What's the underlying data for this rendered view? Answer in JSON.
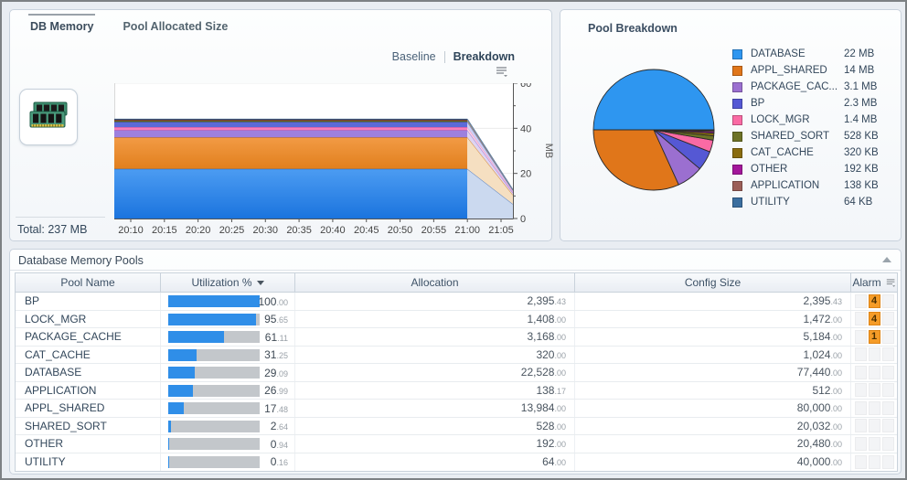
{
  "memory_panel": {
    "tabs": [
      {
        "label": "DB Memory",
        "selected": true
      },
      {
        "label": "Pool Allocated Size",
        "selected": false
      }
    ],
    "views": [
      {
        "label": "Baseline",
        "selected": false
      },
      {
        "label": "Breakdown",
        "selected": true
      }
    ],
    "total_label": "Total: 237 MB",
    "chart_data": {
      "type": "area",
      "x_ticks": [
        "20:10",
        "20:15",
        "20:20",
        "20:25",
        "20:30",
        "20:35",
        "20:40",
        "20:45",
        "20:50",
        "20:55",
        "21:00",
        "21:05"
      ],
      "ylabel": "MB",
      "ylim": [
        0,
        60
      ],
      "y_major_ticks": [
        0,
        20,
        40,
        60
      ],
      "y_minor_ticks": [
        10,
        30,
        50
      ],
      "forecast_start_tick": "21:00",
      "forecast_end_factor": 0.29,
      "series": [
        {
          "name": "DATABASE",
          "mb": 22,
          "fill": "#1B74DE",
          "fill2": "#4C9CF2",
          "edge": "#1462C8",
          "ffill": "#CBD9EF",
          "fedge": "#5580C4"
        },
        {
          "name": "APPL_SHARED",
          "mb": 14,
          "fill": "#E17F1D",
          "fill2": "#F29B45",
          "edge": "#B35F0E",
          "ffill": "#F5DFC1",
          "fedge": "#D98A2B"
        },
        {
          "name": "PACKAGE_CACHE",
          "mb": 3.1,
          "fill": "#9D80DE",
          "edge": "#7A55C2",
          "ffill": "#DED4F2",
          "fedge": "#9F82DE"
        },
        {
          "name": "LOCK_MGR",
          "mb": 1.4,
          "fill": "#F87EB9",
          "edge": "#E0509A",
          "ffill": "#FBD6E7",
          "fedge": "#F892C4"
        },
        {
          "name": "BP",
          "mb": 2.3,
          "fill": "#5C6AD8",
          "edge": "#3A46B8",
          "ffill": "#CDD2F2",
          "fedge": "#6A76DC"
        },
        {
          "name": "SHARED_SORT",
          "mb": 0.52,
          "fill": "#6D7226",
          "edge": "#555A18",
          "ffill": "#E3E5C9",
          "fedge": "#8A8F4A"
        },
        {
          "name": "CAT_CACHE",
          "mb": 0.31,
          "fill": "#8A6C0F",
          "edge": "#6B530A",
          "ffill": "#EDE3C4",
          "fedge": "#A8893A"
        },
        {
          "name": "OTHER",
          "mb": 0.19,
          "fill": "#A3169B",
          "edge": "#7E0E78",
          "ffill": "#F0CCEE",
          "fedge": "#B54AAE"
        },
        {
          "name": "APPLICATION",
          "mb": 0.14,
          "fill": "#9C5F58",
          "edge": "#7A443E",
          "ffill": "#EAD8D6",
          "fedge": "#AF7A74"
        },
        {
          "name": "UTILITY",
          "mb": 0.06,
          "fill": "#3B6E9F",
          "edge": "#2A5580",
          "ffill": "#D3E0EB",
          "fedge": "#5E88AC"
        }
      ]
    }
  },
  "pool_breakdown": {
    "title": "Pool Breakdown",
    "chart_data": {
      "type": "pie",
      "slices": [
        {
          "label": "DATABASE",
          "value_label": "22 MB",
          "mb": 22,
          "color": "#2E96F0"
        },
        {
          "label": "APPL_SHARED",
          "value_label": "14 MB",
          "mb": 14,
          "color": "#E0761A"
        },
        {
          "label": "PACKAGE_CAC...",
          "value_label": "3.1 MB",
          "mb": 3.1,
          "color": "#9B6FD0"
        },
        {
          "label": "BP",
          "value_label": "2.3 MB",
          "mb": 2.3,
          "color": "#5558D4"
        },
        {
          "label": "LOCK_MGR",
          "value_label": "1.4 MB",
          "mb": 1.4,
          "color": "#FA6AA4"
        },
        {
          "label": "SHARED_SORT",
          "value_label": "528 KB",
          "mb": 0.516,
          "color": "#6D7226"
        },
        {
          "label": "CAT_CACHE",
          "value_label": "320 KB",
          "mb": 0.3125,
          "color": "#8A6C0F"
        },
        {
          "label": "OTHER",
          "value_label": "192 KB",
          "mb": 0.1875,
          "color": "#A3169B"
        },
        {
          "label": "APPLICATION",
          "value_label": "138 KB",
          "mb": 0.1348,
          "color": "#9C5F58"
        },
        {
          "label": "UTILITY",
          "value_label": "64 KB",
          "mb": 0.0625,
          "color": "#3B6E9F"
        }
      ]
    }
  },
  "pools_table": {
    "title": "Database Memory Pools",
    "columns": [
      "Pool Name",
      "Utilization %",
      "Allocation",
      "Config Size",
      "Alarm"
    ],
    "rows": [
      {
        "name": "BP",
        "util": "100.00",
        "alloc": "2,395.43",
        "config": "2,395.43",
        "alarm": "4"
      },
      {
        "name": "LOCK_MGR",
        "util": "95.65",
        "alloc": "1,408.00",
        "config": "1,472.00",
        "alarm": "4"
      },
      {
        "name": "PACKAGE_CACHE",
        "util": "61.11",
        "alloc": "3,168.00",
        "config": "5,184.00",
        "alarm": "1"
      },
      {
        "name": "CAT_CACHE",
        "util": "31.25",
        "alloc": "320.00",
        "config": "1,024.00",
        "alarm": null
      },
      {
        "name": "DATABASE",
        "util": "29.09",
        "alloc": "22,528.00",
        "config": "77,440.00",
        "alarm": null
      },
      {
        "name": "APPLICATION",
        "util": "26.99",
        "alloc": "138.17",
        "config": "512.00",
        "alarm": null
      },
      {
        "name": "APPL_SHARED",
        "util": "17.48",
        "alloc": "13,984.00",
        "config": "80,000.00",
        "alarm": null
      },
      {
        "name": "SHARED_SORT",
        "util": "2.64",
        "alloc": "528.00",
        "config": "20,032.00",
        "alarm": null
      },
      {
        "name": "OTHER",
        "util": "0.94",
        "alloc": "192.00",
        "config": "20,480.00",
        "alarm": null
      },
      {
        "name": "UTILITY",
        "util": "0.16",
        "alloc": "64.00",
        "config": "40,000.00",
        "alarm": null
      }
    ]
  }
}
